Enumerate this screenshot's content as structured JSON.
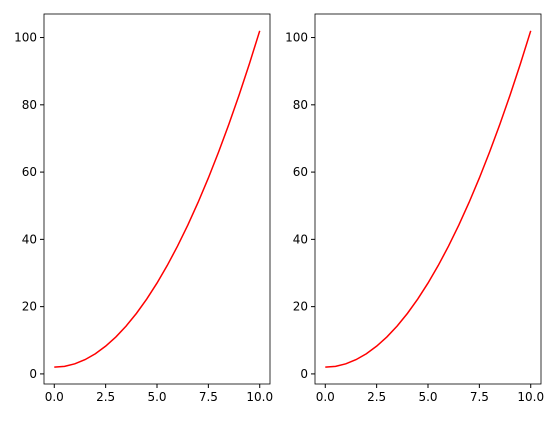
{
  "chart_data": [
    {
      "type": "line",
      "x": [
        0,
        0.5,
        1,
        1.5,
        2,
        2.5,
        3,
        3.5,
        4,
        4.5,
        5,
        5.5,
        6,
        6.5,
        7,
        7.5,
        8,
        8.5,
        9,
        9.5,
        10
      ],
      "series": [
        {
          "color": "#ff0000",
          "values": [
            2,
            2.25,
            3,
            4.25,
            6,
            8.25,
            11,
            14.25,
            18,
            22.25,
            27,
            32.25,
            38,
            44.25,
            51,
            58.25,
            66,
            74.25,
            83,
            92.25,
            102
          ]
        }
      ],
      "xlim": [
        -0.5,
        10.5
      ],
      "ylim": [
        -3,
        107
      ],
      "xticks": [
        {
          "value": 0,
          "label": "0.0"
        },
        {
          "value": 2.5,
          "label": "2.5"
        },
        {
          "value": 5,
          "label": "5.0"
        },
        {
          "value": 7.5,
          "label": "7.5"
        },
        {
          "value": 10,
          "label": "10.0"
        }
      ],
      "yticks": [
        0,
        20,
        40,
        60,
        80,
        100
      ]
    },
    {
      "type": "line",
      "x": [
        0,
        0.5,
        1,
        1.5,
        2,
        2.5,
        3,
        3.5,
        4,
        4.5,
        5,
        5.5,
        6,
        6.5,
        7,
        7.5,
        8,
        8.5,
        9,
        9.5,
        10
      ],
      "series": [
        {
          "color": "#ff0000",
          "values": [
            2,
            2.25,
            3,
            4.25,
            6,
            8.25,
            11,
            14.25,
            18,
            22.25,
            27,
            32.25,
            38,
            44.25,
            51,
            58.25,
            66,
            74.25,
            83,
            92.25,
            102
          ]
        }
      ],
      "xlim": [
        -0.5,
        10.5
      ],
      "ylim": [
        -3,
        107
      ],
      "xticks": [
        {
          "value": 0,
          "label": "0.0"
        },
        {
          "value": 2.5,
          "label": "2.5"
        },
        {
          "value": 5,
          "label": "5.0"
        },
        {
          "value": 7.5,
          "label": "7.5"
        },
        {
          "value": 10,
          "label": "10.0"
        }
      ],
      "yticks": [
        0,
        20,
        40,
        60,
        80,
        100
      ]
    }
  ]
}
